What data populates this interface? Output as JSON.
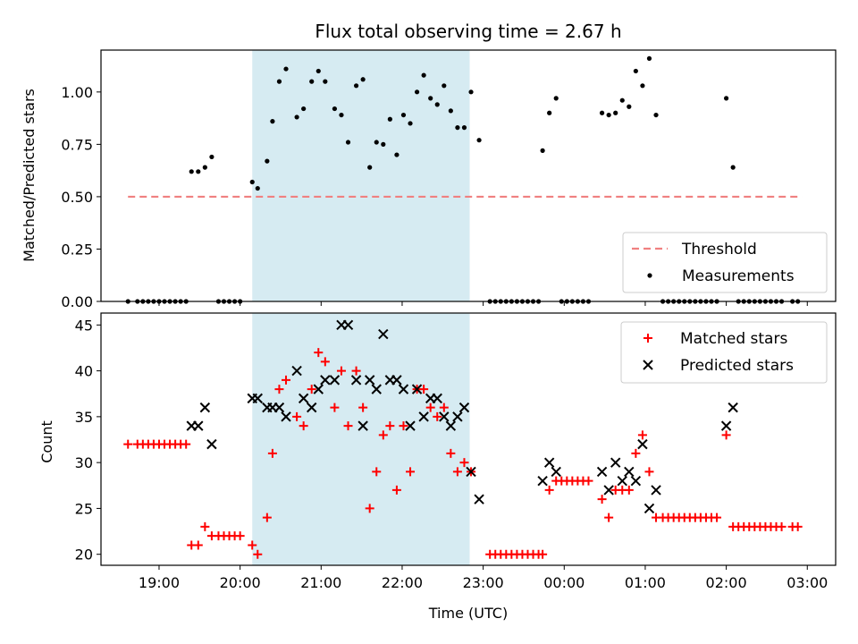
{
  "chart_data": [
    {
      "type": "scatter",
      "title": "Flux total observing time = 2.67 h",
      "xlabel": "",
      "ylabel": "Matched/Predicted stars",
      "xlim": [
        "18:17",
        "03:21"
      ],
      "ylim": [
        0,
        1.2
      ],
      "yticks": [
        "0.00",
        "0.25",
        "0.50",
        "0.75",
        "1.00"
      ],
      "grid": false,
      "legend": "lower-right",
      "highlight_span": {
        "from": "20:09",
        "to": "22:50",
        "color": "#add8e6"
      },
      "series": [
        {
          "name": "Threshold",
          "style": "dashed-line",
          "color": "#f08080",
          "points": [
            [
              "18:37",
              0.5
            ],
            [
              "02:56",
              0.5
            ]
          ]
        },
        {
          "name": "Measurements",
          "style": "dot",
          "color": "#000000",
          "points": [
            [
              "18:37",
              0
            ],
            [
              "18:44",
              0
            ],
            [
              "18:48",
              0
            ],
            [
              "18:52",
              0
            ],
            [
              "18:56",
              0
            ],
            [
              "19:00",
              0
            ],
            [
              "19:04",
              0
            ],
            [
              "19:08",
              0
            ],
            [
              "19:12",
              0
            ],
            [
              "19:16",
              0
            ],
            [
              "19:20",
              0
            ],
            [
              "19:24",
              0.62
            ],
            [
              "19:29",
              0.62
            ],
            [
              "19:34",
              0.64
            ],
            [
              "19:39",
              0.69
            ],
            [
              "19:44",
              0
            ],
            [
              "19:48",
              0
            ],
            [
              "19:52",
              0
            ],
            [
              "19:56",
              0
            ],
            [
              "20:00",
              0
            ],
            [
              "20:09",
              0.57
            ],
            [
              "20:13",
              0.54
            ],
            [
              "20:20",
              0.67
            ],
            [
              "20:24",
              0.86
            ],
            [
              "20:29",
              1.05
            ],
            [
              "20:34",
              1.11
            ],
            [
              "20:42",
              0.88
            ],
            [
              "20:47",
              0.92
            ],
            [
              "20:53",
              1.05
            ],
            [
              "20:58",
              1.1
            ],
            [
              "21:03",
              1.05
            ],
            [
              "21:10",
              0.92
            ],
            [
              "21:15",
              0.89
            ],
            [
              "21:20",
              0.76
            ],
            [
              "21:26",
              1.03
            ],
            [
              "21:31",
              1.06
            ],
            [
              "21:36",
              0.64
            ],
            [
              "21:41",
              0.76
            ],
            [
              "21:46",
              0.75
            ],
            [
              "21:51",
              0.87
            ],
            [
              "21:56",
              0.7
            ],
            [
              "22:01",
              0.89
            ],
            [
              "22:06",
              0.85
            ],
            [
              "22:11",
              1.0
            ],
            [
              "22:16",
              1.08
            ],
            [
              "22:21",
              0.97
            ],
            [
              "22:26",
              0.94
            ],
            [
              "22:31",
              1.03
            ],
            [
              "22:36",
              0.91
            ],
            [
              "22:41",
              0.83
            ],
            [
              "22:46",
              0.83
            ],
            [
              "22:51",
              1.0
            ],
            [
              "22:57",
              0.77
            ],
            [
              "23:05",
              0
            ],
            [
              "23:09",
              0
            ],
            [
              "23:13",
              0
            ],
            [
              "23:17",
              0
            ],
            [
              "23:21",
              0
            ],
            [
              "23:25",
              0
            ],
            [
              "23:29",
              0
            ],
            [
              "23:33",
              0
            ],
            [
              "23:37",
              0
            ],
            [
              "23:41",
              0
            ],
            [
              "23:44",
              0.72
            ],
            [
              "23:49",
              0.9
            ],
            [
              "23:54",
              0.97
            ],
            [
              "23:58",
              0
            ],
            [
              "00:02",
              0
            ],
            [
              "00:06",
              0
            ],
            [
              "00:10",
              0
            ],
            [
              "00:14",
              0
            ],
            [
              "00:18",
              0
            ],
            [
              "00:28",
              0.9
            ],
            [
              "00:33",
              0.89
            ],
            [
              "00:38",
              0.9
            ],
            [
              "00:43",
              0.96
            ],
            [
              "00:48",
              0.93
            ],
            [
              "00:53",
              1.1
            ],
            [
              "00:58",
              1.03
            ],
            [
              "01:03",
              1.16
            ],
            [
              "01:08",
              0.89
            ],
            [
              "01:13",
              0
            ],
            [
              "01:17",
              0
            ],
            [
              "01:21",
              0
            ],
            [
              "01:25",
              0
            ],
            [
              "01:29",
              0
            ],
            [
              "01:33",
              0
            ],
            [
              "01:37",
              0
            ],
            [
              "01:41",
              0
            ],
            [
              "01:45",
              0
            ],
            [
              "01:49",
              0
            ],
            [
              "01:53",
              0
            ],
            [
              "02:00",
              0.97
            ],
            [
              "02:05",
              0.64
            ],
            [
              "02:09",
              0
            ],
            [
              "02:13",
              0
            ],
            [
              "02:17",
              0
            ],
            [
              "02:21",
              0
            ],
            [
              "02:25",
              0
            ],
            [
              "02:29",
              0
            ],
            [
              "02:33",
              0
            ],
            [
              "02:37",
              0
            ],
            [
              "02:41",
              0
            ],
            [
              "02:49",
              0
            ],
            [
              "02:53",
              0
            ]
          ]
        }
      ]
    },
    {
      "type": "scatter",
      "title": "",
      "xlabel": "Time (UTC)",
      "ylabel": "Count",
      "xlim": [
        "18:17",
        "03:21"
      ],
      "ylim": [
        18.8,
        46.3
      ],
      "yticks": [
        "20",
        "25",
        "30",
        "35",
        "40",
        "45"
      ],
      "xticks": [
        "19:00",
        "20:00",
        "21:00",
        "22:00",
        "23:00",
        "00:00",
        "01:00",
        "02:00",
        "03:00"
      ],
      "grid": false,
      "legend": "top-right",
      "highlight_span": {
        "from": "20:09",
        "to": "22:50",
        "color": "#add8e6"
      },
      "series": [
        {
          "name": "Matched stars",
          "marker": "+",
          "color": "#ff0000",
          "points": [
            [
              "18:37",
              32
            ],
            [
              "18:44",
              32
            ],
            [
              "18:48",
              32
            ],
            [
              "18:52",
              32
            ],
            [
              "18:56",
              32
            ],
            [
              "19:00",
              32
            ],
            [
              "19:04",
              32
            ],
            [
              "19:08",
              32
            ],
            [
              "19:12",
              32
            ],
            [
              "19:16",
              32
            ],
            [
              "19:20",
              32
            ],
            [
              "19:24",
              21
            ],
            [
              "19:29",
              21
            ],
            [
              "19:34",
              23
            ],
            [
              "19:39",
              22
            ],
            [
              "19:44",
              22
            ],
            [
              "19:48",
              22
            ],
            [
              "19:52",
              22
            ],
            [
              "19:56",
              22
            ],
            [
              "20:00",
              22
            ],
            [
              "20:09",
              21
            ],
            [
              "20:13",
              20
            ],
            [
              "20:20",
              24
            ],
            [
              "20:24",
              31
            ],
            [
              "20:29",
              38
            ],
            [
              "20:34",
              39
            ],
            [
              "20:42",
              35
            ],
            [
              "20:47",
              34
            ],
            [
              "20:53",
              38
            ],
            [
              "20:58",
              42
            ],
            [
              "21:03",
              41
            ],
            [
              "21:10",
              36
            ],
            [
              "21:15",
              40
            ],
            [
              "21:20",
              34
            ],
            [
              "21:26",
              40
            ],
            [
              "21:31",
              36
            ],
            [
              "21:36",
              25
            ],
            [
              "21:41",
              29
            ],
            [
              "21:46",
              33
            ],
            [
              "21:51",
              34
            ],
            [
              "21:56",
              27
            ],
            [
              "22:01",
              34
            ],
            [
              "22:06",
              29
            ],
            [
              "22:11",
              38
            ],
            [
              "22:16",
              38
            ],
            [
              "22:21",
              36
            ],
            [
              "22:26",
              35
            ],
            [
              "22:31",
              36
            ],
            [
              "22:36",
              31
            ],
            [
              "22:41",
              29
            ],
            [
              "22:46",
              30
            ],
            [
              "22:51",
              29
            ],
            [
              "23:05",
              20
            ],
            [
              "23:09",
              20
            ],
            [
              "23:13",
              20
            ],
            [
              "23:17",
              20
            ],
            [
              "23:21",
              20
            ],
            [
              "23:25",
              20
            ],
            [
              "23:29",
              20
            ],
            [
              "23:33",
              20
            ],
            [
              "23:37",
              20
            ],
            [
              "23:41",
              20
            ],
            [
              "23:44",
              20
            ],
            [
              "23:49",
              27
            ],
            [
              "23:54",
              28
            ],
            [
              "23:58",
              28
            ],
            [
              "00:02",
              28
            ],
            [
              "00:06",
              28
            ],
            [
              "00:10",
              28
            ],
            [
              "00:14",
              28
            ],
            [
              "00:18",
              28
            ],
            [
              "00:28",
              26
            ],
            [
              "00:33",
              24
            ],
            [
              "00:38",
              27
            ],
            [
              "00:43",
              27
            ],
            [
              "00:48",
              27
            ],
            [
              "00:53",
              31
            ],
            [
              "00:58",
              33
            ],
            [
              "01:03",
              29
            ],
            [
              "01:08",
              24
            ],
            [
              "01:13",
              24
            ],
            [
              "01:17",
              24
            ],
            [
              "01:21",
              24
            ],
            [
              "01:25",
              24
            ],
            [
              "01:29",
              24
            ],
            [
              "01:33",
              24
            ],
            [
              "01:37",
              24
            ],
            [
              "01:41",
              24
            ],
            [
              "01:45",
              24
            ],
            [
              "01:49",
              24
            ],
            [
              "01:53",
              24
            ],
            [
              "02:00",
              33
            ],
            [
              "02:05",
              23
            ],
            [
              "02:09",
              23
            ],
            [
              "02:13",
              23
            ],
            [
              "02:17",
              23
            ],
            [
              "02:21",
              23
            ],
            [
              "02:25",
              23
            ],
            [
              "02:29",
              23
            ],
            [
              "02:33",
              23
            ],
            [
              "02:37",
              23
            ],
            [
              "02:41",
              23
            ],
            [
              "02:49",
              23
            ],
            [
              "02:53",
              23
            ]
          ]
        },
        {
          "name": "Predicted stars",
          "marker": "x",
          "color": "#000000",
          "points": [
            [
              "19:24",
              34
            ],
            [
              "19:29",
              34
            ],
            [
              "19:34",
              36
            ],
            [
              "19:39",
              32
            ],
            [
              "20:09",
              37
            ],
            [
              "20:13",
              37
            ],
            [
              "20:20",
              36
            ],
            [
              "20:24",
              36
            ],
            [
              "20:29",
              36
            ],
            [
              "20:34",
              35
            ],
            [
              "20:42",
              40
            ],
            [
              "20:47",
              37
            ],
            [
              "20:53",
              36
            ],
            [
              "20:58",
              38
            ],
            [
              "21:03",
              39
            ],
            [
              "21:10",
              39
            ],
            [
              "21:15",
              45
            ],
            [
              "21:20",
              45
            ],
            [
              "21:26",
              39
            ],
            [
              "21:31",
              34
            ],
            [
              "21:36",
              39
            ],
            [
              "21:41",
              38
            ],
            [
              "21:46",
              44
            ],
            [
              "21:51",
              39
            ],
            [
              "21:56",
              39
            ],
            [
              "22:01",
              38
            ],
            [
              "22:06",
              34
            ],
            [
              "22:11",
              38
            ],
            [
              "22:16",
              35
            ],
            [
              "22:21",
              37
            ],
            [
              "22:26",
              37
            ],
            [
              "22:31",
              35
            ],
            [
              "22:36",
              34
            ],
            [
              "22:41",
              35
            ],
            [
              "22:46",
              36
            ],
            [
              "22:51",
              29
            ],
            [
              "22:57",
              26
            ],
            [
              "23:44",
              28
            ],
            [
              "23:49",
              30
            ],
            [
              "23:54",
              29
            ],
            [
              "00:28",
              29
            ],
            [
              "00:33",
              27
            ],
            [
              "00:38",
              30
            ],
            [
              "00:43",
              28
            ],
            [
              "00:48",
              29
            ],
            [
              "00:53",
              28
            ],
            [
              "00:58",
              32
            ],
            [
              "01:03",
              25
            ],
            [
              "01:08",
              27
            ],
            [
              "02:00",
              34
            ],
            [
              "02:05",
              36
            ]
          ]
        }
      ]
    }
  ]
}
